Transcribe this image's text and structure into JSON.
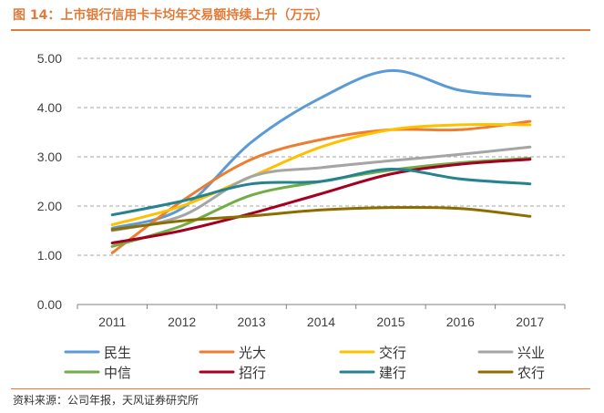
{
  "header": {
    "title": "图 14：上市银行信用卡卡均年交易额持续上升（万元）"
  },
  "footer": {
    "source": "资料来源：公司年报，天风证券研究所"
  },
  "chart_data": {
    "type": "line",
    "x": [
      "2011",
      "2012",
      "2013",
      "2014",
      "2015",
      "2016",
      "2017"
    ],
    "y_ticks": [
      "0.00",
      "1.00",
      "2.00",
      "3.00",
      "4.00",
      "5.00"
    ],
    "ylim": [
      0,
      5
    ],
    "grid": "horizontal dashed",
    "legend_position": "bottom",
    "series": [
      {
        "name": "民生",
        "color": "#5B9BD5",
        "values": [
          1.55,
          1.95,
          3.3,
          4.2,
          4.75,
          4.35,
          4.23
        ]
      },
      {
        "name": "光大",
        "color": "#ED7D31",
        "values": [
          1.05,
          2.1,
          2.95,
          3.35,
          3.55,
          3.55,
          3.72
        ]
      },
      {
        "name": "交行",
        "color": "#FFC000",
        "values": [
          1.62,
          2.0,
          2.6,
          3.2,
          3.55,
          3.65,
          3.65
        ]
      },
      {
        "name": "兴业",
        "color": "#A5A5A5",
        "values": [
          1.5,
          1.8,
          2.6,
          2.78,
          2.92,
          3.05,
          3.2
        ]
      },
      {
        "name": "中信",
        "color": "#70AD47",
        "values": [
          1.18,
          1.6,
          2.22,
          2.5,
          2.73,
          2.88,
          2.97
        ]
      },
      {
        "name": "招行",
        "color": "#A50021",
        "values": [
          1.25,
          1.5,
          1.85,
          2.25,
          2.65,
          2.85,
          2.95
        ]
      },
      {
        "name": "建行",
        "color": "#24838F",
        "values": [
          1.82,
          2.1,
          2.45,
          2.5,
          2.75,
          2.55,
          2.45
        ]
      },
      {
        "name": "农行",
        "color": "#8C6D00",
        "values": [
          1.52,
          1.7,
          1.8,
          1.92,
          1.97,
          1.95,
          1.79
        ]
      }
    ]
  }
}
